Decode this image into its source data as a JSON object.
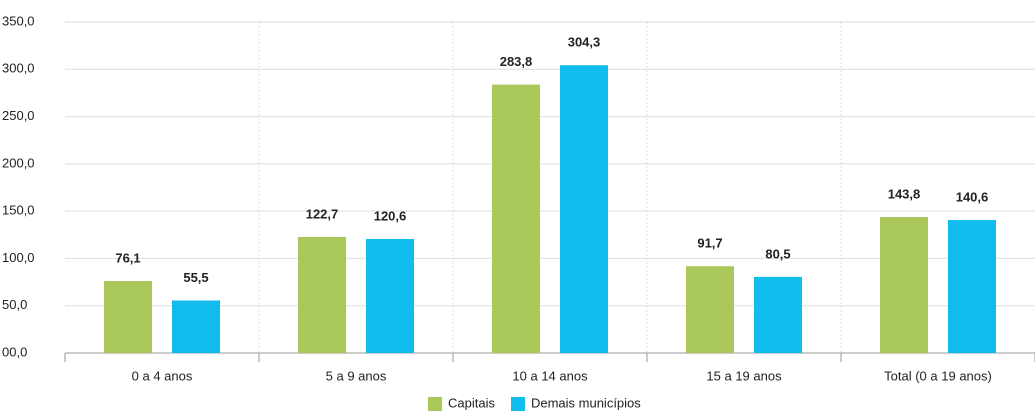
{
  "chart_data": {
    "type": "bar",
    "categories": [
      "0 a 4 anos",
      "5 a 9 anos",
      "10 a 14 anos",
      "15 a 19 anos",
      "Total (0 a 19 anos)"
    ],
    "series": [
      {
        "name": "Capitais",
        "color": "#aac75a",
        "values": [
          76.1,
          122.7,
          283.8,
          91.7,
          143.8
        ],
        "value_labels": [
          "76,1",
          "122,7",
          "283,8",
          "91,7",
          "143,8"
        ]
      },
      {
        "name": "Demais municípios",
        "color": "#12bdee",
        "values": [
          55.5,
          120.6,
          304.3,
          80.5,
          140.6
        ],
        "value_labels": [
          "55,5",
          "120,6",
          "304,3",
          "80,5",
          "140,6"
        ]
      }
    ],
    "ylim": [
      0,
      350
    ],
    "yticks": [
      {
        "value": 0,
        "label": "00,0"
      },
      {
        "value": 50,
        "label": "50,0"
      },
      {
        "value": 100,
        "label": "100,0"
      },
      {
        "value": 150,
        "label": "150,0"
      },
      {
        "value": 200,
        "label": "200,0"
      },
      {
        "value": 250,
        "label": "250,0"
      },
      {
        "value": 300,
        "label": "300,0"
      },
      {
        "value": 350,
        "label": "350,0"
      }
    ],
    "grid": true,
    "legend": "bottom"
  }
}
